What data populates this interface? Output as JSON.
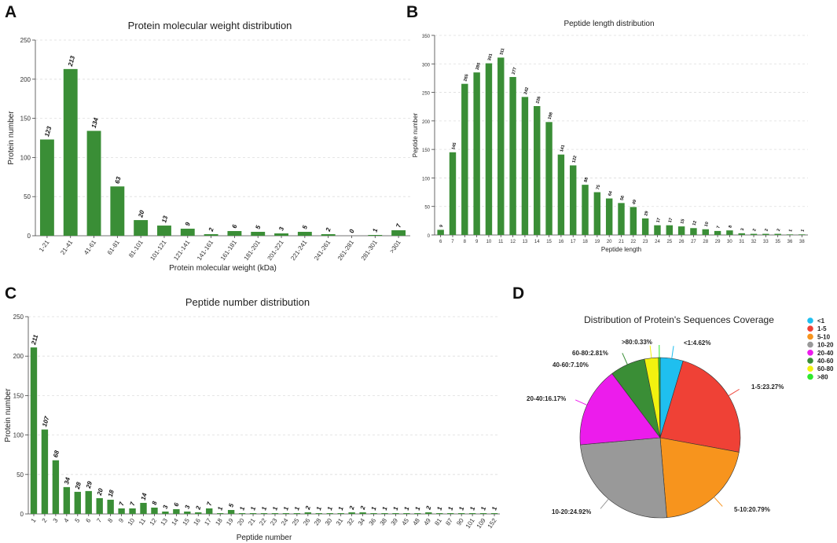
{
  "panels": {
    "a": "A",
    "b": "B",
    "c": "C",
    "d": "D"
  },
  "chart_data": [
    {
      "id": "A",
      "type": "bar",
      "title": "Protein molecular weight distribution",
      "xlabel": "Protein molecular weight (kDa)",
      "ylabel": "Protein number",
      "ylim": [
        0,
        250
      ],
      "yticks": [
        0,
        50,
        100,
        150,
        200,
        250
      ],
      "grid": true,
      "color": "#3a8e36",
      "categories": [
        "1-21",
        "21-41",
        "41-61",
        "61-81",
        "81-101",
        "101-121",
        "121-141",
        "141-161",
        "161-181",
        "181-201",
        "201-221",
        "221-241",
        "241-261",
        "261-281",
        "281-301",
        ">301"
      ],
      "values": [
        123,
        213,
        134,
        63,
        20,
        13,
        9,
        2,
        6,
        5,
        3,
        5,
        2,
        0,
        1,
        7
      ]
    },
    {
      "id": "B",
      "type": "bar",
      "title": "Peptide length distribution",
      "xlabel": "Peptide length",
      "ylabel": "Peptide number",
      "ylim": [
        0,
        350
      ],
      "yticks": [
        0,
        50,
        100,
        150,
        200,
        250,
        300,
        350
      ],
      "grid": true,
      "color": "#3a8e36",
      "categories": [
        "6",
        "7",
        "8",
        "9",
        "10",
        "11",
        "12",
        "13",
        "14",
        "15",
        "16",
        "17",
        "18",
        "19",
        "20",
        "21",
        "22",
        "23",
        "24",
        "25",
        "26",
        "27",
        "28",
        "29",
        "30",
        "31",
        "32",
        "33",
        "35",
        "36",
        "38"
      ],
      "values": [
        9,
        145,
        265,
        285,
        301,
        311,
        277,
        242,
        226,
        198,
        141,
        122,
        88,
        75,
        64,
        56,
        49,
        29,
        17,
        17,
        15,
        12,
        10,
        7,
        8,
        3,
        2,
        2,
        2,
        1,
        1
      ]
    },
    {
      "id": "C",
      "type": "bar",
      "title": "Peptide number distribution",
      "xlabel": "Peptide number",
      "ylabel": "Protein number",
      "ylim": [
        0,
        250
      ],
      "yticks": [
        0,
        50,
        100,
        150,
        200,
        250
      ],
      "grid": true,
      "color": "#3a8e36",
      "categories": [
        "1",
        "2",
        "3",
        "4",
        "5",
        "6",
        "7",
        "8",
        "9",
        "10",
        "11",
        "12",
        "13",
        "14",
        "15",
        "16",
        "17",
        "18",
        "19",
        "20",
        "21",
        "22",
        "23",
        "24",
        "25",
        "26",
        "28",
        "30",
        "31",
        "32",
        "34",
        "36",
        "38",
        "39",
        "45",
        "48",
        "49",
        "81",
        "87",
        "90",
        "101",
        "109",
        "152"
      ],
      "values": [
        211,
        107,
        68,
        34,
        28,
        29,
        20,
        18,
        7,
        7,
        14,
        8,
        3,
        6,
        3,
        2,
        7,
        1,
        5,
        1,
        1,
        1,
        1,
        1,
        1,
        2,
        1,
        1,
        1,
        2,
        2,
        1,
        1,
        1,
        1,
        1,
        2,
        1,
        1,
        1,
        1,
        1,
        1
      ]
    },
    {
      "id": "D",
      "type": "pie",
      "title": "Distribution of Protein's Sequences Coverage",
      "legend_position": "top-right",
      "slices": [
        {
          "name": "<1",
          "value": 4.62,
          "label": "<1:4.62%",
          "color": "#1fbfef"
        },
        {
          "name": "1-5",
          "value": 23.27,
          "label": "1-5:23.27%",
          "color": "#ef4136"
        },
        {
          "name": "5-10",
          "value": 20.79,
          "label": "5-10:20.79%",
          "color": "#f7941d"
        },
        {
          "name": "10-20",
          "value": 24.92,
          "label": "10-20:24.92%",
          "color": "#999999"
        },
        {
          "name": "20-40",
          "value": 16.17,
          "label": "20-40:16.17%",
          "color": "#ec1cec"
        },
        {
          "name": "40-60",
          "value": 7.1,
          "label": "40-60:7.10%",
          "color": "#3a8e36"
        },
        {
          "name": "60-80",
          "value": 2.81,
          "label": "60-80:2.81%",
          "color": "#f2f20f"
        },
        {
          "name": ">80",
          "value": 0.33,
          "label": ">80:0.33%",
          "color": "#2ee82e"
        }
      ]
    }
  ]
}
